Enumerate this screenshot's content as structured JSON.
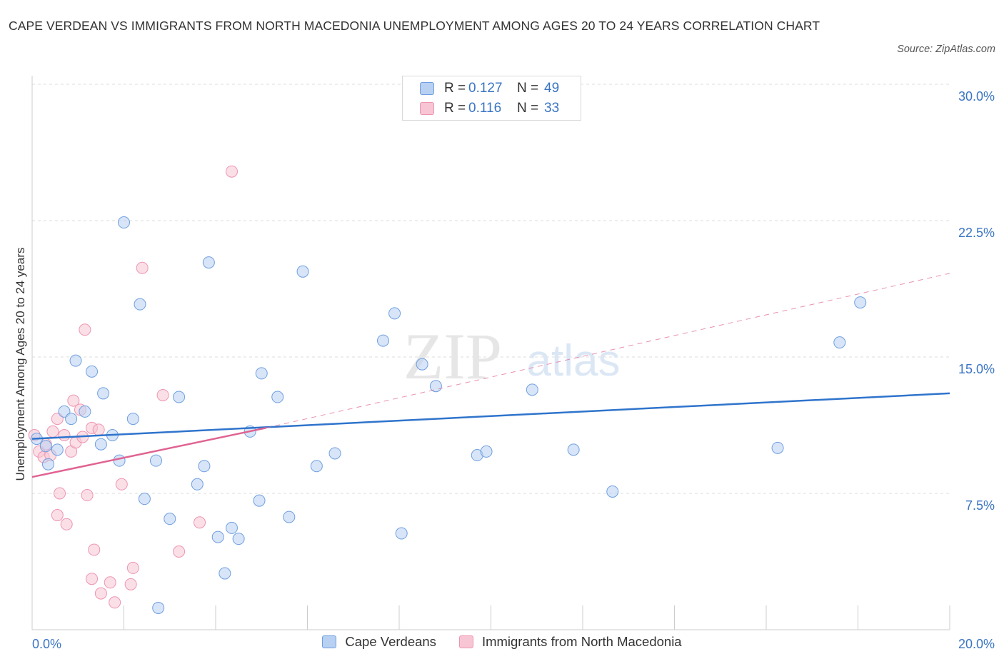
{
  "title": "CAPE VERDEAN VS IMMIGRANTS FROM NORTH MACEDONIA UNEMPLOYMENT AMONG AGES 20 TO 24 YEARS CORRELATION CHART",
  "source": "Source: ZipAtlas.com",
  "watermark": {
    "zip": "ZIP",
    "atlas": "atlas"
  },
  "legend": {
    "r_label": "R =",
    "n_label": "N =",
    "series1": {
      "r": "0.127",
      "n": "49"
    },
    "series2": {
      "r": "0.116",
      "n": "33"
    }
  },
  "colors": {
    "blue_fill": "#b8d0f2",
    "blue_stroke": "#6f9fe0",
    "blue_line": "#2f74cc",
    "pink_fill": "#f7c5d4",
    "pink_stroke": "#ee95b1",
    "pink_line": "#e06392",
    "axis_text": "#3a75c4",
    "grid": "#dcdcdc"
  },
  "chart_data": {
    "type": "scatter",
    "title": "CAPE VERDEAN VS IMMIGRANTS FROM NORTH MACEDONIA UNEMPLOYMENT AMONG AGES 20 TO 24 YEARS CORRELATION CHART",
    "xlabel": "",
    "ylabel": "Unemployment Among Ages 20 to 24 years",
    "xlim": [
      0,
      20
    ],
    "ylim": [
      0,
      30
    ],
    "x_tick_labels": [
      "0.0%",
      "20.0%"
    ],
    "y_ticks": [
      7.5,
      15.0,
      22.5,
      30.0
    ],
    "y_tick_labels": [
      "7.5%",
      "15.0%",
      "22.5%",
      "30.0%"
    ],
    "series": [
      {
        "name": "Cape Verdeans",
        "points": [
          [
            0.1,
            10.5
          ],
          [
            0.3,
            10.1
          ],
          [
            0.35,
            9.1
          ],
          [
            0.55,
            9.9
          ],
          [
            0.7,
            12.0
          ],
          [
            0.85,
            11.6
          ],
          [
            0.95,
            14.8
          ],
          [
            1.15,
            12.0
          ],
          [
            1.3,
            14.2
          ],
          [
            1.5,
            10.2
          ],
          [
            1.55,
            13.0
          ],
          [
            1.75,
            10.7
          ],
          [
            1.9,
            9.3
          ],
          [
            2.0,
            22.4
          ],
          [
            2.2,
            11.6
          ],
          [
            2.35,
            17.9
          ],
          [
            2.45,
            7.2
          ],
          [
            2.7,
            9.3
          ],
          [
            2.75,
            1.2
          ],
          [
            3.0,
            6.1
          ],
          [
            3.2,
            12.8
          ],
          [
            3.6,
            8.0
          ],
          [
            3.75,
            9.0
          ],
          [
            3.85,
            20.2
          ],
          [
            4.05,
            5.1
          ],
          [
            4.2,
            3.1
          ],
          [
            4.35,
            5.6
          ],
          [
            4.5,
            5.0
          ],
          [
            4.75,
            10.9
          ],
          [
            4.95,
            7.1
          ],
          [
            5.0,
            14.1
          ],
          [
            5.35,
            12.8
          ],
          [
            5.6,
            6.2
          ],
          [
            5.9,
            19.7
          ],
          [
            6.2,
            9.0
          ],
          [
            6.6,
            9.7
          ],
          [
            7.65,
            15.9
          ],
          [
            7.9,
            17.4
          ],
          [
            8.05,
            5.3
          ],
          [
            8.5,
            14.6
          ],
          [
            8.8,
            13.4
          ],
          [
            9.7,
            9.6
          ],
          [
            9.9,
            9.8
          ],
          [
            10.9,
            13.2
          ],
          [
            11.8,
            9.9
          ],
          [
            12.65,
            7.6
          ],
          [
            16.25,
            10.0
          ],
          [
            17.6,
            15.8
          ],
          [
            18.05,
            18.0
          ]
        ],
        "trend": {
          "x": [
            0,
            20
          ],
          "y": [
            10.5,
            13.0
          ],
          "style": "solid"
        }
      },
      {
        "name": "Immigrants from North Macedonia",
        "points": [
          [
            0.05,
            10.7
          ],
          [
            0.15,
            9.8
          ],
          [
            0.25,
            9.5
          ],
          [
            0.3,
            10.2
          ],
          [
            0.4,
            9.6
          ],
          [
            0.45,
            10.9
          ],
          [
            0.55,
            11.6
          ],
          [
            0.6,
            7.5
          ],
          [
            0.55,
            6.3
          ],
          [
            0.7,
            10.7
          ],
          [
            0.75,
            5.8
          ],
          [
            0.85,
            9.8
          ],
          [
            0.9,
            12.6
          ],
          [
            0.95,
            10.3
          ],
          [
            1.05,
            12.1
          ],
          [
            1.1,
            10.6
          ],
          [
            1.15,
            16.5
          ],
          [
            1.2,
            7.4
          ],
          [
            1.3,
            11.1
          ],
          [
            1.3,
            2.8
          ],
          [
            1.35,
            4.4
          ],
          [
            1.45,
            11.0
          ],
          [
            1.5,
            2.0
          ],
          [
            1.7,
            2.6
          ],
          [
            1.8,
            1.5
          ],
          [
            1.95,
            8.0
          ],
          [
            2.15,
            2.5
          ],
          [
            2.2,
            3.4
          ],
          [
            2.4,
            19.9
          ],
          [
            2.85,
            12.9
          ],
          [
            3.2,
            4.3
          ],
          [
            3.65,
            5.9
          ],
          [
            4.35,
            25.2
          ]
        ],
        "trend": {
          "x": [
            0,
            5.1
          ],
          "y": [
            8.4,
            11.1
          ],
          "style": "solid",
          "extended": {
            "x": [
              5.1,
              20
            ],
            "y": [
              11.1,
              19.6
            ],
            "style": "dashed"
          }
        }
      }
    ],
    "legend": [
      "Cape Verdeans",
      "Immigrants from North Macedonia"
    ],
    "grid": true
  }
}
